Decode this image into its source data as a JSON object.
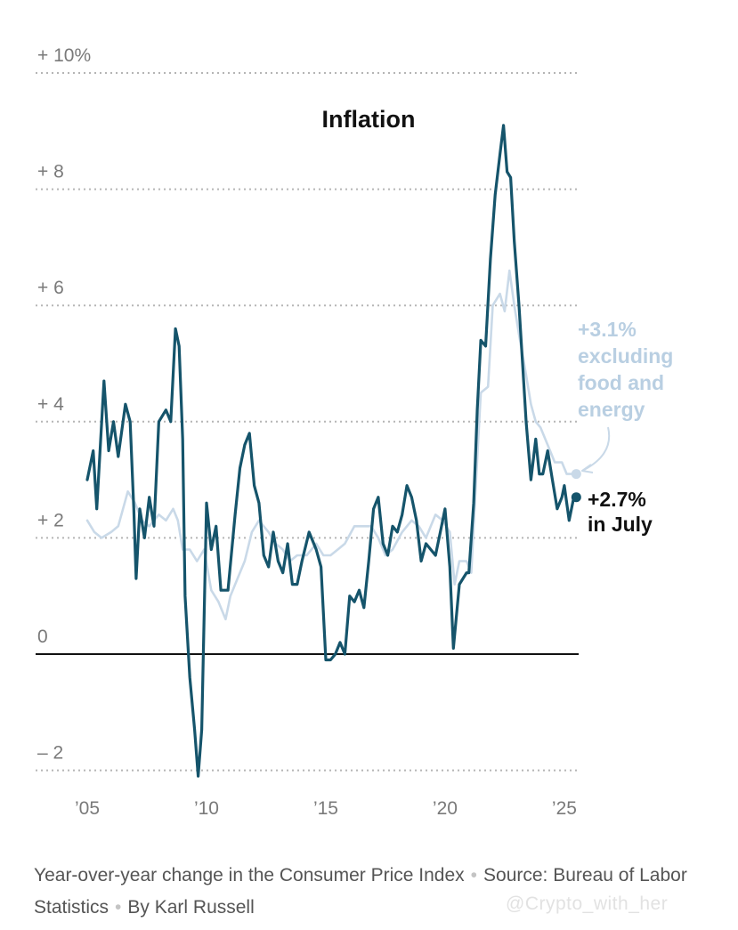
{
  "chart_data": {
    "type": "line",
    "title": "Inflation",
    "ylim": [
      -2.2,
      10
    ],
    "xlim": [
      2005.0,
      2025.6
    ],
    "y_ticks": [
      {
        "value": 10,
        "label": "+ 10%"
      },
      {
        "value": 8,
        "label": "+  8"
      },
      {
        "value": 6,
        "label": "+  6"
      },
      {
        "value": 4,
        "label": "+  4"
      },
      {
        "value": 2,
        "label": "+  2"
      },
      {
        "value": 0,
        "label": "0"
      },
      {
        "value": -2,
        "label": "–  2"
      }
    ],
    "x_ticks": [
      {
        "value": 2005,
        "label": "’05"
      },
      {
        "value": 2010,
        "label": "’10"
      },
      {
        "value": 2015,
        "label": "’15"
      },
      {
        "value": 2020,
        "label": "’20"
      },
      {
        "value": 2025,
        "label": "’25"
      }
    ],
    "grid": "horizontal dotted",
    "series": [
      {
        "key": "core",
        "color": "#c9d9e8",
        "points": [
          [
            2005.0,
            2.3
          ],
          [
            2005.3,
            2.1
          ],
          [
            2005.6,
            2.0
          ],
          [
            2006.0,
            2.1
          ],
          [
            2006.3,
            2.2
          ],
          [
            2006.7,
            2.8
          ],
          [
            2007.0,
            2.6
          ],
          [
            2007.3,
            2.3
          ],
          [
            2007.6,
            2.2
          ],
          [
            2008.0,
            2.4
          ],
          [
            2008.3,
            2.3
          ],
          [
            2008.6,
            2.5
          ],
          [
            2008.8,
            2.3
          ],
          [
            2009.0,
            1.8
          ],
          [
            2009.3,
            1.8
          ],
          [
            2009.6,
            1.6
          ],
          [
            2009.9,
            1.8
          ],
          [
            2010.2,
            1.1
          ],
          [
            2010.5,
            0.9
          ],
          [
            2010.8,
            0.6
          ],
          [
            2011.0,
            1.0
          ],
          [
            2011.3,
            1.3
          ],
          [
            2011.6,
            1.6
          ],
          [
            2011.9,
            2.1
          ],
          [
            2012.2,
            2.3
          ],
          [
            2012.6,
            2.1
          ],
          [
            2012.9,
            1.9
          ],
          [
            2013.2,
            1.8
          ],
          [
            2013.5,
            1.6
          ],
          [
            2013.8,
            1.7
          ],
          [
            2014.2,
            1.7
          ],
          [
            2014.6,
            1.9
          ],
          [
            2014.9,
            1.7
          ],
          [
            2015.2,
            1.7
          ],
          [
            2015.5,
            1.8
          ],
          [
            2015.8,
            1.9
          ],
          [
            2016.2,
            2.2
          ],
          [
            2016.6,
            2.2
          ],
          [
            2016.9,
            2.2
          ],
          [
            2017.2,
            2.0
          ],
          [
            2017.5,
            1.7
          ],
          [
            2017.8,
            1.8
          ],
          [
            2018.2,
            2.1
          ],
          [
            2018.6,
            2.3
          ],
          [
            2018.9,
            2.2
          ],
          [
            2019.2,
            2.0
          ],
          [
            2019.6,
            2.4
          ],
          [
            2019.9,
            2.3
          ],
          [
            2020.2,
            2.1
          ],
          [
            2020.4,
            1.2
          ],
          [
            2020.6,
            1.6
          ],
          [
            2020.9,
            1.6
          ],
          [
            2021.1,
            1.4
          ],
          [
            2021.3,
            3.0
          ],
          [
            2021.5,
            4.5
          ],
          [
            2021.8,
            4.6
          ],
          [
            2022.0,
            6.0
          ],
          [
            2022.3,
            6.2
          ],
          [
            2022.5,
            5.9
          ],
          [
            2022.7,
            6.6
          ],
          [
            2022.9,
            6.0
          ],
          [
            2023.1,
            5.5
          ],
          [
            2023.4,
            4.8
          ],
          [
            2023.6,
            4.3
          ],
          [
            2023.8,
            4.0
          ],
          [
            2024.0,
            3.9
          ],
          [
            2024.3,
            3.6
          ],
          [
            2024.6,
            3.3
          ],
          [
            2024.9,
            3.3
          ],
          [
            2025.1,
            3.1
          ],
          [
            2025.4,
            3.1
          ]
        ]
      },
      {
        "key": "headline",
        "color": "#15546b",
        "points": [
          [
            2005.0,
            3.0
          ],
          [
            2005.25,
            3.5
          ],
          [
            2005.4,
            2.5
          ],
          [
            2005.7,
            4.7
          ],
          [
            2005.9,
            3.5
          ],
          [
            2006.1,
            4.0
          ],
          [
            2006.3,
            3.4
          ],
          [
            2006.6,
            4.3
          ],
          [
            2006.8,
            4.0
          ],
          [
            2006.95,
            2.5
          ],
          [
            2007.05,
            1.3
          ],
          [
            2007.2,
            2.5
          ],
          [
            2007.4,
            2.0
          ],
          [
            2007.6,
            2.7
          ],
          [
            2007.8,
            2.2
          ],
          [
            2008.0,
            4.0
          ],
          [
            2008.3,
            4.2
          ],
          [
            2008.5,
            4.0
          ],
          [
            2008.7,
            5.6
          ],
          [
            2008.85,
            5.3
          ],
          [
            2009.0,
            3.7
          ],
          [
            2009.1,
            1.0
          ],
          [
            2009.3,
            -0.4
          ],
          [
            2009.5,
            -1.3
          ],
          [
            2009.65,
            -2.1
          ],
          [
            2009.8,
            -1.3
          ],
          [
            2010.0,
            2.6
          ],
          [
            2010.2,
            1.8
          ],
          [
            2010.4,
            2.2
          ],
          [
            2010.6,
            1.1
          ],
          [
            2010.9,
            1.1
          ],
          [
            2011.2,
            2.4
          ],
          [
            2011.4,
            3.2
          ],
          [
            2011.6,
            3.6
          ],
          [
            2011.8,
            3.8
          ],
          [
            2012.0,
            2.9
          ],
          [
            2012.2,
            2.6
          ],
          [
            2012.4,
            1.7
          ],
          [
            2012.6,
            1.5
          ],
          [
            2012.8,
            2.1
          ],
          [
            2013.0,
            1.6
          ],
          [
            2013.2,
            1.4
          ],
          [
            2013.4,
            1.9
          ],
          [
            2013.6,
            1.2
          ],
          [
            2013.8,
            1.2
          ],
          [
            2014.0,
            1.6
          ],
          [
            2014.3,
            2.1
          ],
          [
            2014.6,
            1.8
          ],
          [
            2014.8,
            1.5
          ],
          [
            2015.0,
            -0.1
          ],
          [
            2015.2,
            -0.1
          ],
          [
            2015.4,
            0.0
          ],
          [
            2015.6,
            0.2
          ],
          [
            2015.8,
            0.0
          ],
          [
            2016.0,
            1.0
          ],
          [
            2016.2,
            0.9
          ],
          [
            2016.4,
            1.1
          ],
          [
            2016.6,
            0.8
          ],
          [
            2016.8,
            1.6
          ],
          [
            2017.0,
            2.5
          ],
          [
            2017.2,
            2.7
          ],
          [
            2017.4,
            1.9
          ],
          [
            2017.6,
            1.7
          ],
          [
            2017.8,
            2.2
          ],
          [
            2018.0,
            2.1
          ],
          [
            2018.2,
            2.4
          ],
          [
            2018.4,
            2.9
          ],
          [
            2018.6,
            2.7
          ],
          [
            2018.8,
            2.3
          ],
          [
            2019.0,
            1.6
          ],
          [
            2019.2,
            1.9
          ],
          [
            2019.4,
            1.8
          ],
          [
            2019.6,
            1.7
          ],
          [
            2019.8,
            2.1
          ],
          [
            2020.0,
            2.5
          ],
          [
            2020.2,
            1.5
          ],
          [
            2020.35,
            0.1
          ],
          [
            2020.6,
            1.2
          ],
          [
            2020.9,
            1.4
          ],
          [
            2021.0,
            1.4
          ],
          [
            2021.2,
            2.6
          ],
          [
            2021.35,
            4.2
          ],
          [
            2021.5,
            5.4
          ],
          [
            2021.7,
            5.3
          ],
          [
            2021.9,
            6.8
          ],
          [
            2022.1,
            7.9
          ],
          [
            2022.3,
            8.6
          ],
          [
            2022.45,
            9.1
          ],
          [
            2022.6,
            8.3
          ],
          [
            2022.75,
            8.2
          ],
          [
            2022.9,
            7.1
          ],
          [
            2023.1,
            6.0
          ],
          [
            2023.25,
            5.0
          ],
          [
            2023.4,
            4.0
          ],
          [
            2023.6,
            3.0
          ],
          [
            2023.8,
            3.7
          ],
          [
            2023.95,
            3.1
          ],
          [
            2024.1,
            3.1
          ],
          [
            2024.3,
            3.5
          ],
          [
            2024.5,
            3.0
          ],
          [
            2024.7,
            2.5
          ],
          [
            2024.9,
            2.7
          ],
          [
            2025.0,
            2.9
          ],
          [
            2025.2,
            2.3
          ],
          [
            2025.4,
            2.7
          ]
        ]
      }
    ],
    "annotations": {
      "core": {
        "lines": [
          "+3.1%",
          "excluding",
          "food and",
          "energy"
        ],
        "value": 3.1,
        "x": 2025.5
      },
      "headline": {
        "lines": [
          "+2.7%",
          "in July"
        ],
        "value": 2.7,
        "x": 2025.5
      }
    }
  },
  "footer": {
    "caption": "Year-over-year change in the Consumer Price Index",
    "source": "Source: Bureau of Labor Statistics",
    "byline": "By Karl Russell"
  },
  "watermark": "@Crypto_with_her"
}
